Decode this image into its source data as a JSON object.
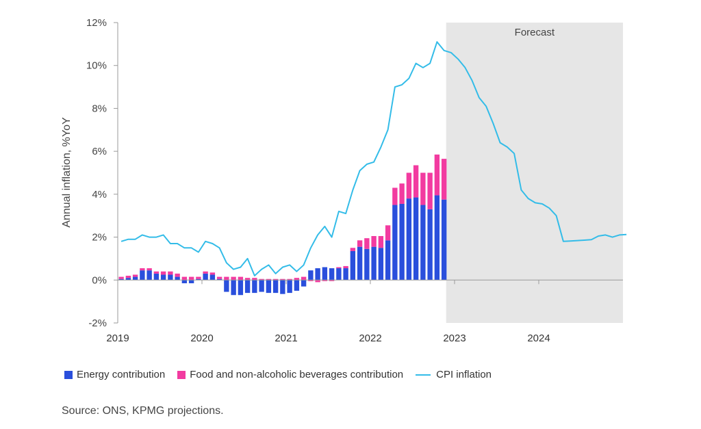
{
  "chart_data": {
    "type": "bar",
    "ylabel": "Annual inflation, %YoY",
    "ylim": [
      -2,
      12
    ],
    "yticks": [
      -2,
      0,
      2,
      4,
      6,
      8,
      10,
      12
    ],
    "ytick_labels": [
      "-2%",
      "0%",
      "2%",
      "4%",
      "6%",
      "8%",
      "10%",
      "12%"
    ],
    "xtick_labels": [
      "2019",
      "2020",
      "2021",
      "2022",
      "2023",
      "2024"
    ],
    "x_start": "2019-01",
    "grid": false,
    "forecast_label": "Forecast",
    "forecast_start": "2022-12",
    "colors": {
      "energy": "#2a4fdc",
      "food": "#f23ba0",
      "cpi": "#33bce8",
      "forecast_shade": "#e6e6e6"
    },
    "series": [
      {
        "name": "Energy contribution",
        "values": [
          0.05,
          0.1,
          0.15,
          0.45,
          0.45,
          0.3,
          0.25,
          0.25,
          0.15,
          -0.15,
          -0.15,
          0.05,
          0.3,
          0.25,
          0.05,
          -0.55,
          -0.7,
          -0.7,
          -0.6,
          -0.6,
          -0.55,
          -0.6,
          -0.6,
          -0.65,
          -0.6,
          -0.5,
          -0.3,
          0.45,
          0.55,
          0.6,
          0.55,
          0.55,
          0.55,
          1.35,
          1.55,
          1.45,
          1.55,
          1.5,
          1.85,
          3.5,
          3.55,
          3.8,
          3.85,
          3.5,
          3.3,
          3.95,
          3.75
        ]
      },
      {
        "name": "Food and non-alcoholic beverages contribution",
        "values": [
          0.1,
          0.1,
          0.1,
          0.1,
          0.1,
          0.1,
          0.15,
          0.15,
          0.15,
          0.15,
          0.15,
          0.1,
          0.1,
          0.1,
          0.1,
          0.15,
          0.15,
          0.15,
          0.1,
          0.1,
          0.05,
          0.05,
          0.05,
          0.05,
          0.05,
          0.1,
          0.15,
          -0.05,
          -0.1,
          -0.05,
          -0.05,
          0.05,
          0.1,
          0.15,
          0.3,
          0.5,
          0.5,
          0.55,
          0.7,
          0.8,
          0.95,
          1.2,
          1.5,
          1.5,
          1.7,
          1.9,
          1.9
        ]
      },
      {
        "name": "CPI inflation",
        "values": [
          1.8,
          1.9,
          1.9,
          2.1,
          2.0,
          2.0,
          2.1,
          1.7,
          1.7,
          1.5,
          1.5,
          1.3,
          1.8,
          1.7,
          1.5,
          0.8,
          0.5,
          0.6,
          1.0,
          0.2,
          0.5,
          0.7,
          0.3,
          0.6,
          0.7,
          0.4,
          0.7,
          1.5,
          2.1,
          2.5,
          2.0,
          3.2,
          3.1,
          4.2,
          5.1,
          5.4,
          5.5,
          6.2,
          7.0,
          9.0,
          9.1,
          9.4,
          10.1,
          9.9,
          10.1,
          11.1,
          10.7,
          10.6,
          10.3,
          9.9,
          9.3,
          8.5,
          8.1,
          7.3,
          6.4,
          6.2,
          5.9,
          4.2,
          3.8,
          3.6,
          3.55,
          3.35,
          3.0,
          1.8,
          1.82,
          1.84,
          1.86,
          1.88,
          2.05,
          2.1,
          2.0,
          2.1,
          2.12
        ]
      }
    ]
  },
  "legend": {
    "energy": "Energy contribution",
    "food": "Food and non-alcoholic beverages contribution",
    "cpi": "CPI inflation"
  },
  "source": "Source: ONS, KPMG projections."
}
